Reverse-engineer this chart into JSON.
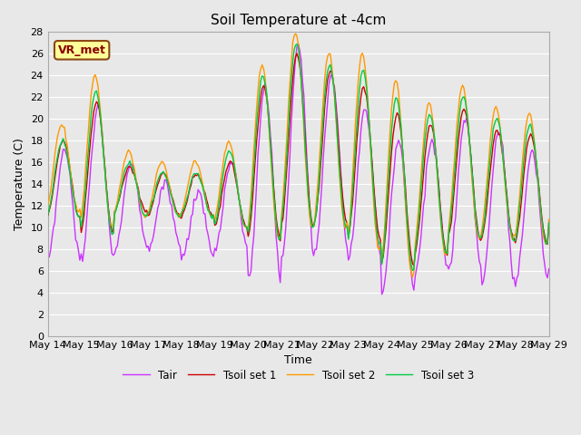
{
  "title": "Soil Temperature at -4cm",
  "xlabel": "Time",
  "ylabel": "Temperature (C)",
  "ylim": [
    0,
    28
  ],
  "yticks": [
    0,
    2,
    4,
    6,
    8,
    10,
    12,
    14,
    16,
    18,
    20,
    22,
    24,
    26,
    28
  ],
  "annotation_text": "VR_met",
  "bg_color": "#e8e8e8",
  "plot_bg_color": "#e8e8e8",
  "grid_color": "white",
  "legend_labels": [
    "Tair",
    "Tsoil set 1",
    "Tsoil set 2",
    "Tsoil set 3"
  ],
  "line_colors": [
    "#cc33ff",
    "#cc0000",
    "#ff9900",
    "#00cc44"
  ],
  "line_width": 1.0,
  "x_start": 14,
  "x_end": 29,
  "x_ticks": [
    14,
    15,
    16,
    17,
    18,
    19,
    20,
    21,
    22,
    23,
    24,
    25,
    26,
    27,
    28,
    29
  ],
  "x_tick_labels": [
    "May 14",
    "May 15",
    "May 16",
    "May 17",
    "May 18",
    "May 19",
    "May 20",
    "May 21",
    "May 22",
    "May 23",
    "May 24",
    "May 25",
    "May 26",
    "May 27",
    "May 28",
    "May 29"
  ]
}
